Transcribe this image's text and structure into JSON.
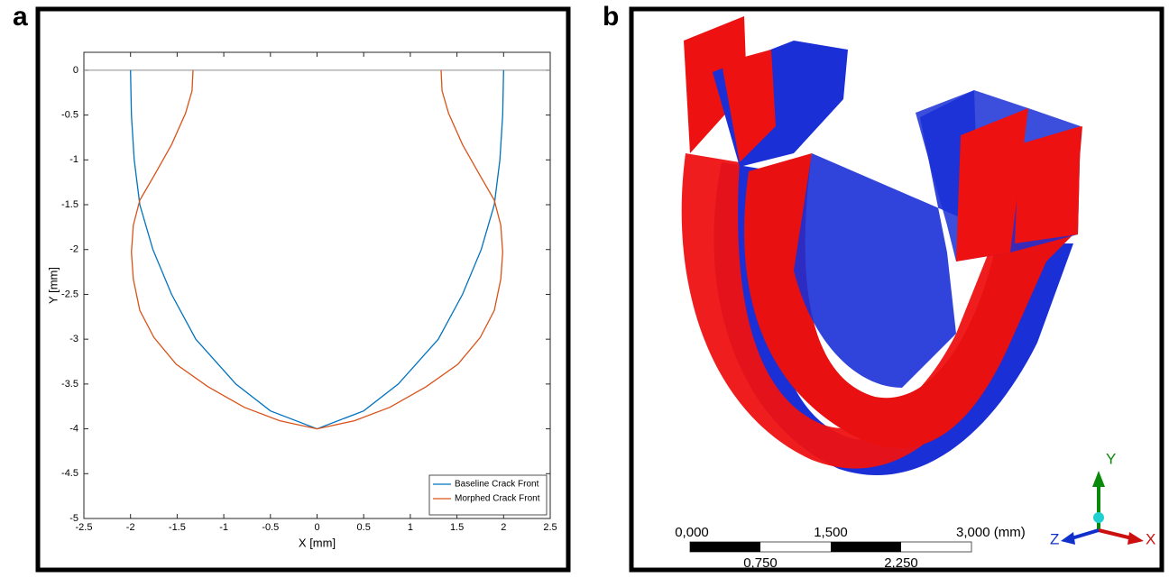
{
  "panel_labels": [
    "a",
    "b"
  ],
  "chart_data": {
    "type": "line",
    "xlabel": "X  [mm]",
    "ylabel": "Y  [mm]",
    "xlim": [
      -2.5,
      2.5
    ],
    "ylim": [
      -5,
      0.2
    ],
    "xticks": [
      -2.5,
      -2,
      -1.5,
      -1,
      -0.5,
      0,
      0.5,
      1,
      1.5,
      2,
      2.5
    ],
    "yticks": [
      0,
      -0.5,
      -1,
      -1.5,
      -2,
      -2.5,
      -3,
      -3.5,
      -4,
      -4.5,
      -5
    ],
    "legend": "lower right",
    "grid": false,
    "series": [
      {
        "name": "Baseline Crack Front",
        "color": "#0072bd",
        "x": [
          -2,
          -1.99,
          -1.96,
          -1.9,
          -1.76,
          -1.56,
          -1.3,
          -0.87,
          -0.5,
          0,
          0.5,
          0.87,
          1.3,
          1.56,
          1.76,
          1.9,
          1.96,
          1.99,
          2
        ],
        "values": [
          0,
          -0.5,
          -1,
          -1.5,
          -2,
          -2.5,
          -3,
          -3.5,
          -3.8,
          -4,
          -3.8,
          -3.5,
          -3,
          -2.5,
          -2,
          -1.5,
          -1,
          -0.5,
          0
        ]
      },
      {
        "name": "Morphed Crack Front",
        "color": "#d95319",
        "x": [
          -1.33,
          -1.34,
          -1.41,
          -1.56,
          -1.75,
          -1.9,
          -1.97,
          -1.99,
          -1.97,
          -1.9,
          -1.75,
          -1.51,
          -1.17,
          -0.78,
          -0.4,
          0,
          0.4,
          0.78,
          1.17,
          1.51,
          1.75,
          1.9,
          1.97,
          1.99,
          1.97,
          1.9,
          1.75,
          1.56,
          1.41,
          1.34,
          1.33
        ],
        "values": [
          0,
          -0.23,
          -0.48,
          -0.83,
          -1.18,
          -1.45,
          -1.73,
          -2.03,
          -2.33,
          -2.68,
          -2.98,
          -3.28,
          -3.53,
          -3.76,
          -3.91,
          -4,
          -3.91,
          -3.76,
          -3.53,
          -3.28,
          -2.98,
          -2.68,
          -2.33,
          -2.03,
          -1.73,
          -1.45,
          -1.18,
          -0.83,
          -0.48,
          -0.23,
          0
        ]
      }
    ]
  },
  "panel_b": {
    "scale_top": [
      "0,000",
      "1,500",
      "3,000 (mm)"
    ],
    "scale_bottom": [
      "0,750",
      "2,250"
    ],
    "triad": {
      "y": "Y",
      "z": "Z",
      "x": "X"
    }
  }
}
